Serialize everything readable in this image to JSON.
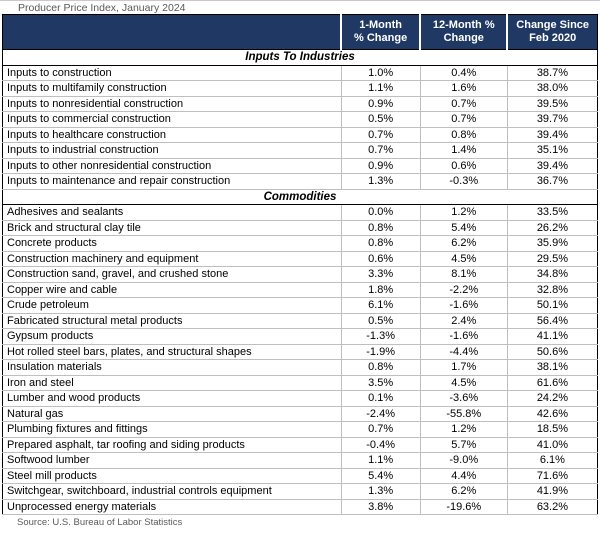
{
  "title": "Producer Price Index, January 2024",
  "source": "Source: U.S. Bureau of Labor Statistics",
  "colors": {
    "header_bg": "#1F3864",
    "header_text": "#FFFFFF",
    "grid_line": "#BFBFBF",
    "outer_border": "#000000",
    "muted_text": "#595959"
  },
  "chart_data": {
    "type": "table",
    "title": "Producer Price Index, January 2024",
    "column_headers": [
      "1-Month\n% Change",
      "12-Month %\nChange",
      "Change Since\nFeb 2020"
    ],
    "sections": [
      {
        "label": "Inputs To Industries",
        "rows": [
          [
            "Inputs to construction",
            "1.0%",
            "0.4%",
            "38.7%"
          ],
          [
            "Inputs to multifamily construction",
            "1.1%",
            "1.6%",
            "38.0%"
          ],
          [
            "Inputs to nonresidential construction",
            "0.9%",
            "0.7%",
            "39.5%"
          ],
          [
            "Inputs to commercial construction",
            "0.5%",
            "0.7%",
            "39.7%"
          ],
          [
            "Inputs to healthcare construction",
            "0.7%",
            "0.8%",
            "39.4%"
          ],
          [
            "Inputs to industrial construction",
            "0.7%",
            "1.4%",
            "35.1%"
          ],
          [
            "Inputs to other nonresidential construction",
            "0.9%",
            "0.6%",
            "39.4%"
          ],
          [
            "Inputs to maintenance and repair construction",
            "1.3%",
            "-0.3%",
            "36.7%"
          ]
        ]
      },
      {
        "label": "Commodities",
        "rows": [
          [
            "Adhesives and sealants",
            "0.0%",
            "1.2%",
            "33.5%"
          ],
          [
            "Brick and structural clay tile",
            "0.8%",
            "5.4%",
            "26.2%"
          ],
          [
            "Concrete products",
            "0.8%",
            "6.2%",
            "35.9%"
          ],
          [
            "Construction machinery and equipment",
            "0.6%",
            "4.5%",
            "29.5%"
          ],
          [
            "Construction sand, gravel, and crushed stone",
            "3.3%",
            "8.1%",
            "34.8%"
          ],
          [
            "Copper wire and cable",
            "1.8%",
            "-2.2%",
            "32.8%"
          ],
          [
            "Crude petroleum",
            "6.1%",
            "-1.6%",
            "50.1%"
          ],
          [
            "Fabricated structural metal products",
            "0.5%",
            "2.4%",
            "56.4%"
          ],
          [
            "Gypsum products",
            "-1.3%",
            "-1.6%",
            "41.1%"
          ],
          [
            "Hot rolled steel bars, plates, and structural shapes",
            "-1.9%",
            "-4.4%",
            "50.6%"
          ],
          [
            "Insulation materials",
            "0.8%",
            "1.7%",
            "38.1%"
          ],
          [
            "Iron and steel",
            "3.5%",
            "4.5%",
            "61.6%"
          ],
          [
            "Lumber and wood products",
            "0.1%",
            "-3.6%",
            "24.2%"
          ],
          [
            "Natural gas",
            "-2.4%",
            "-55.8%",
            "42.6%"
          ],
          [
            "Plumbing fixtures and fittings",
            "0.7%",
            "1.2%",
            "18.5%"
          ],
          [
            "Prepared asphalt, tar roofing and siding products",
            "-0.4%",
            "5.7%",
            "41.0%"
          ],
          [
            "Softwood lumber",
            "1.1%",
            "-9.0%",
            "6.1%"
          ],
          [
            "Steel mill products",
            "5.4%",
            "4.4%",
            "71.6%"
          ],
          [
            "Switchgear, switchboard, industrial controls equipment",
            "1.3%",
            "6.2%",
            "41.9%"
          ],
          [
            "Unprocessed energy materials",
            "3.8%",
            "-19.6%",
            "63.2%"
          ]
        ]
      }
    ],
    "source": "Source: U.S. Bureau of Labor Statistics"
  }
}
